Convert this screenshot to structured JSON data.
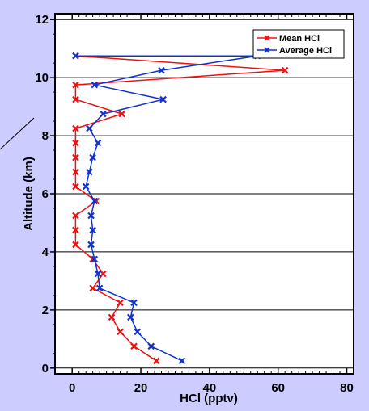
{
  "chart_data": {
    "type": "line",
    "title": "",
    "xlabel": "HCl (pptv)",
    "ylabel": "Altitude (km)",
    "xlim": [
      -5,
      82
    ],
    "ylim": [
      -0.2,
      12.2
    ],
    "xticks": [
      "0",
      "20",
      "40",
      "60",
      "80"
    ],
    "yticks": [
      "0",
      "2",
      "4",
      "6",
      "8",
      "10",
      "12"
    ],
    "grid": "horizontal",
    "legend": "top-right",
    "series": [
      {
        "name": "Mean HCl",
        "color": "#ee1111",
        "points": [
          [
            24.5,
            0.25
          ],
          [
            18,
            0.75
          ],
          [
            14,
            1.25
          ],
          [
            11.5,
            1.75
          ],
          [
            14,
            2.25
          ],
          [
            6,
            2.75
          ],
          [
            9,
            3.25
          ],
          [
            6,
            3.75
          ],
          [
            1,
            4.25
          ],
          [
            1,
            4.75
          ],
          [
            1,
            5.25
          ],
          [
            7,
            5.75
          ],
          [
            1,
            6.25
          ],
          [
            1,
            6.75
          ],
          [
            1,
            7.25
          ],
          [
            1,
            7.75
          ],
          [
            1,
            8.25
          ],
          [
            14.5,
            8.75
          ],
          [
            1,
            9.25
          ],
          [
            1,
            9.75
          ],
          [
            62,
            10.25
          ],
          [
            1,
            10.75
          ]
        ]
      },
      {
        "name": "Average HCl",
        "color": "#1133cc",
        "points": [
          [
            32,
            0.25
          ],
          [
            23,
            0.75
          ],
          [
            19,
            1.25
          ],
          [
            17,
            1.75
          ],
          [
            18,
            2.25
          ],
          [
            8,
            2.75
          ],
          [
            7.5,
            3.25
          ],
          [
            6.5,
            3.75
          ],
          [
            5.5,
            4.25
          ],
          [
            6,
            4.75
          ],
          [
            5.5,
            5.25
          ],
          [
            6.5,
            5.75
          ],
          [
            4,
            6.25
          ],
          [
            5,
            6.75
          ],
          [
            6,
            7.25
          ],
          [
            7.5,
            7.75
          ],
          [
            5,
            8.25
          ],
          [
            9,
            8.75
          ],
          [
            26.5,
            9.25
          ],
          [
            6.5,
            9.75
          ],
          [
            26,
            10.25
          ],
          [
            54,
            10.75
          ],
          [
            1,
            10.75
          ]
        ]
      }
    ]
  }
}
